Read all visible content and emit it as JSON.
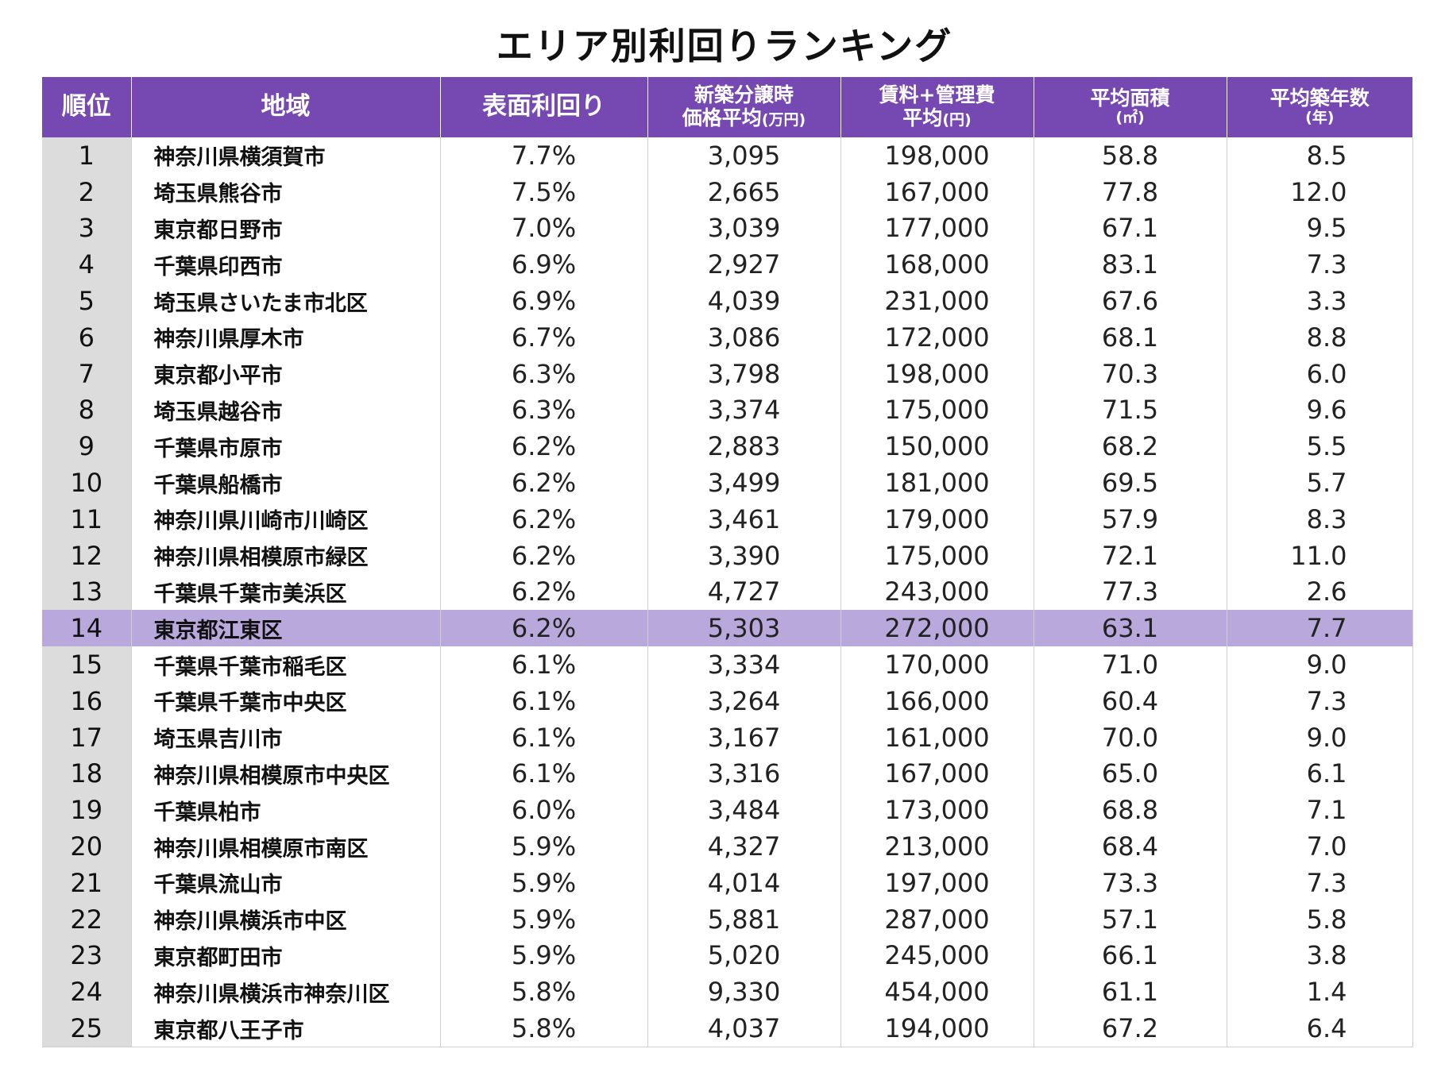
{
  "chart_data": {
    "type": "table",
    "title": "エリア別利回りランキング",
    "header_color": "#7649b2",
    "highlight_color": "#b9a8dc",
    "rank_cell_color": "#dcdcdc",
    "highlight_row_index": 13,
    "columns": [
      {
        "line1": "順位",
        "line2": ""
      },
      {
        "line1": "地域",
        "line2": ""
      },
      {
        "line1": "表面利回り",
        "line2": ""
      },
      {
        "line1": "新築分譲時",
        "line2": "価格平均",
        "unit": "(万円)"
      },
      {
        "line1": "賃料+管理費",
        "line2": "平均",
        "unit": "(円)"
      },
      {
        "line1": "平均面積",
        "line2": "",
        "unit": "(㎡)"
      },
      {
        "line1": "平均築年数",
        "line2": "",
        "unit": "(年)"
      }
    ],
    "rows": [
      {
        "rank": "1",
        "area": "神奈川県横須賀市",
        "yield": "7.7%",
        "price": "3,095",
        "rent": "198,000",
        "sqm": "58.8",
        "age": "8.5"
      },
      {
        "rank": "2",
        "area": "埼玉県熊谷市",
        "yield": "7.5%",
        "price": "2,665",
        "rent": "167,000",
        "sqm": "77.8",
        "age": "12.0"
      },
      {
        "rank": "3",
        "area": "東京都日野市",
        "yield": "7.0%",
        "price": "3,039",
        "rent": "177,000",
        "sqm": "67.1",
        "age": "9.5"
      },
      {
        "rank": "4",
        "area": "千葉県印西市",
        "yield": "6.9%",
        "price": "2,927",
        "rent": "168,000",
        "sqm": "83.1",
        "age": "7.3"
      },
      {
        "rank": "5",
        "area": "埼玉県さいたま市北区",
        "yield": "6.9%",
        "price": "4,039",
        "rent": "231,000",
        "sqm": "67.6",
        "age": "3.3"
      },
      {
        "rank": "6",
        "area": "神奈川県厚木市",
        "yield": "6.7%",
        "price": "3,086",
        "rent": "172,000",
        "sqm": "68.1",
        "age": "8.8"
      },
      {
        "rank": "7",
        "area": "東京都小平市",
        "yield": "6.3%",
        "price": "3,798",
        "rent": "198,000",
        "sqm": "70.3",
        "age": "6.0"
      },
      {
        "rank": "8",
        "area": "埼玉県越谷市",
        "yield": "6.3%",
        "price": "3,374",
        "rent": "175,000",
        "sqm": "71.5",
        "age": "9.6"
      },
      {
        "rank": "9",
        "area": "千葉県市原市",
        "yield": "6.2%",
        "price": "2,883",
        "rent": "150,000",
        "sqm": "68.2",
        "age": "5.5"
      },
      {
        "rank": "10",
        "area": "千葉県船橋市",
        "yield": "6.2%",
        "price": "3,499",
        "rent": "181,000",
        "sqm": "69.5",
        "age": "5.7"
      },
      {
        "rank": "11",
        "area": "神奈川県川崎市川崎区",
        "yield": "6.2%",
        "price": "3,461",
        "rent": "179,000",
        "sqm": "57.9",
        "age": "8.3"
      },
      {
        "rank": "12",
        "area": "神奈川県相模原市緑区",
        "yield": "6.2%",
        "price": "3,390",
        "rent": "175,000",
        "sqm": "72.1",
        "age": "11.0"
      },
      {
        "rank": "13",
        "area": "千葉県千葉市美浜区",
        "yield": "6.2%",
        "price": "4,727",
        "rent": "243,000",
        "sqm": "77.3",
        "age": "2.6"
      },
      {
        "rank": "14",
        "area": "東京都江東区",
        "yield": "6.2%",
        "price": "5,303",
        "rent": "272,000",
        "sqm": "63.1",
        "age": "7.7"
      },
      {
        "rank": "15",
        "area": "千葉県千葉市稲毛区",
        "yield": "6.1%",
        "price": "3,334",
        "rent": "170,000",
        "sqm": "71.0",
        "age": "9.0"
      },
      {
        "rank": "16",
        "area": "千葉県千葉市中央区",
        "yield": "6.1%",
        "price": "3,264",
        "rent": "166,000",
        "sqm": "60.4",
        "age": "7.3"
      },
      {
        "rank": "17",
        "area": "埼玉県吉川市",
        "yield": "6.1%",
        "price": "3,167",
        "rent": "161,000",
        "sqm": "70.0",
        "age": "9.0"
      },
      {
        "rank": "18",
        "area": "神奈川県相模原市中央区",
        "yield": "6.1%",
        "price": "3,316",
        "rent": "167,000",
        "sqm": "65.0",
        "age": "6.1"
      },
      {
        "rank": "19",
        "area": "千葉県柏市",
        "yield": "6.0%",
        "price": "3,484",
        "rent": "173,000",
        "sqm": "68.8",
        "age": "7.1"
      },
      {
        "rank": "20",
        "area": "神奈川県相模原市南区",
        "yield": "5.9%",
        "price": "4,327",
        "rent": "213,000",
        "sqm": "68.4",
        "age": "7.0"
      },
      {
        "rank": "21",
        "area": "千葉県流山市",
        "yield": "5.9%",
        "price": "4,014",
        "rent": "197,000",
        "sqm": "73.3",
        "age": "7.3"
      },
      {
        "rank": "22",
        "area": "神奈川県横浜市中区",
        "yield": "5.9%",
        "price": "5,881",
        "rent": "287,000",
        "sqm": "57.1",
        "age": "5.8"
      },
      {
        "rank": "23",
        "area": "東京都町田市",
        "yield": "5.9%",
        "price": "5,020",
        "rent": "245,000",
        "sqm": "66.1",
        "age": "3.8"
      },
      {
        "rank": "24",
        "area": "神奈川県横浜市神奈川区",
        "yield": "5.8%",
        "price": "9,330",
        "rent": "454,000",
        "sqm": "61.1",
        "age": "1.4"
      },
      {
        "rank": "25",
        "area": "東京都八王子市",
        "yield": "5.8%",
        "price": "4,037",
        "rent": "194,000",
        "sqm": "67.2",
        "age": "6.4"
      }
    ]
  }
}
